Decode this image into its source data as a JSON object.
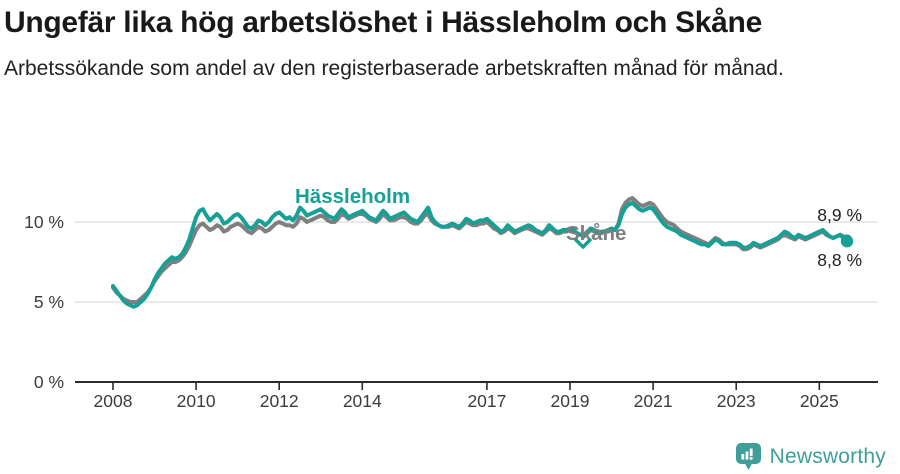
{
  "header": {
    "title": "Ungefär lika hög arbetslöshet i Hässleholm och Skåne",
    "subtitle": "Arbetssökande som andel av den registerbaserade arbetskraften månad för månad."
  },
  "chart_data": {
    "type": "line",
    "unit": "%",
    "x_start": "2008-01",
    "x_end": "2025-09",
    "x_ticks": [
      2008,
      2010,
      2012,
      2014,
      2017,
      2019,
      2021,
      2023,
      2025
    ],
    "y_ticks": [
      {
        "value": 0,
        "label": "0 %"
      },
      {
        "value": 5,
        "label": "5 %"
      },
      {
        "value": 10,
        "label": "10 %"
      }
    ],
    "ylim": [
      0,
      12.5
    ],
    "grid": "horizontal",
    "legend_position": "inline-annotations",
    "series": [
      {
        "name": "Skåne",
        "color": "#7f7f7f",
        "annotation_label": "Skåne",
        "end_label": "8,9 %",
        "end_value": 8.9,
        "values_by_year": {
          "2008": [
            5.9,
            5.6,
            5.4,
            5.2,
            5.1,
            5.0,
            5.0,
            5.0,
            5.2,
            5.4,
            5.6,
            5.9
          ],
          "2009": [
            6.3,
            6.6,
            6.9,
            7.1,
            7.3,
            7.5,
            7.5,
            7.6,
            7.8,
            8.1,
            8.5,
            9.0
          ],
          "2010": [
            9.5,
            9.8,
            9.9,
            9.7,
            9.5,
            9.6,
            9.8,
            9.7,
            9.4,
            9.5,
            9.7,
            9.8
          ],
          "2011": [
            9.9,
            9.8,
            9.6,
            9.4,
            9.3,
            9.5,
            9.7,
            9.6,
            9.4,
            9.5,
            9.7,
            9.9
          ],
          "2012": [
            10.0,
            9.9,
            9.8,
            9.8,
            9.7,
            9.9,
            10.3,
            10.2,
            10.0,
            10.1,
            10.2,
            10.3
          ],
          "2013": [
            10.4,
            10.3,
            10.1,
            10.0,
            10.0,
            10.2,
            10.5,
            10.4,
            10.2,
            10.3,
            10.4,
            10.5
          ],
          "2014": [
            10.5,
            10.4,
            10.2,
            10.1,
            10.0,
            10.2,
            10.5,
            10.3,
            10.1,
            10.1,
            10.2,
            10.3
          ],
          "2015": [
            10.3,
            10.2,
            10.0,
            9.9,
            9.9,
            10.1,
            10.4,
            10.5,
            10.1,
            9.9,
            9.8,
            9.7
          ],
          "2016": [
            9.7,
            9.7,
            9.8,
            9.7,
            9.6,
            9.8,
            10.0,
            9.9,
            9.8,
            9.8,
            9.9,
            9.9
          ],
          "2017": [
            10.0,
            9.8,
            9.6,
            9.5,
            9.3,
            9.4,
            9.6,
            9.5,
            9.3,
            9.4,
            9.5,
            9.6
          ],
          "2018": [
            9.6,
            9.5,
            9.4,
            9.3,
            9.2,
            9.4,
            9.6,
            9.5,
            9.3,
            9.3,
            9.4,
            9.4
          ],
          "2019": [
            9.5,
            9.4,
            9.3,
            9.2,
            9.1,
            9.3,
            9.5,
            9.4,
            9.3,
            9.3,
            9.4,
            9.4
          ],
          "2020": [
            9.5,
            9.5,
            9.9,
            10.8,
            11.2,
            11.4,
            11.5,
            11.3,
            11.1,
            11.0,
            11.1,
            11.2
          ],
          "2021": [
            11.1,
            10.8,
            10.5,
            10.2,
            10.0,
            9.9,
            9.8,
            9.6,
            9.4,
            9.3,
            9.2,
            9.1
          ],
          "2022": [
            9.0,
            8.9,
            8.8,
            8.7,
            8.6,
            8.8,
            9.0,
            8.9,
            8.7,
            8.6,
            8.6,
            8.6
          ],
          "2023": [
            8.6,
            8.5,
            8.3,
            8.3,
            8.4,
            8.6,
            8.5,
            8.4,
            8.5,
            8.6,
            8.7,
            8.8
          ],
          "2024": [
            8.9,
            9.1,
            9.2,
            9.1,
            9.0,
            8.9,
            9.1,
            9.0,
            8.9,
            9.0,
            9.1,
            9.2
          ],
          "2025": [
            9.3,
            9.4,
            9.2,
            9.1,
            9.0,
            9.1,
            9.2,
            9.1,
            8.9
          ]
        }
      },
      {
        "name": "Hässleholm",
        "color": "#16a096",
        "annotation_label": "Hässleholm",
        "end_label": "8,8 %",
        "end_value": 8.8,
        "values_by_year": {
          "2008": [
            6.0,
            5.7,
            5.4,
            5.1,
            4.9,
            4.8,
            4.7,
            4.8,
            5.0,
            5.2,
            5.5,
            5.9
          ],
          "2009": [
            6.4,
            6.8,
            7.1,
            7.4,
            7.6,
            7.8,
            7.7,
            7.8,
            8.0,
            8.4,
            8.9,
            9.6
          ],
          "2010": [
            10.3,
            10.7,
            10.8,
            10.4,
            10.1,
            10.3,
            10.5,
            10.3,
            9.9,
            10.0,
            10.2,
            10.4
          ],
          "2011": [
            10.5,
            10.3,
            10.0,
            9.7,
            9.6,
            9.8,
            10.1,
            10.0,
            9.8,
            10.0,
            10.3,
            10.5
          ],
          "2012": [
            10.6,
            10.4,
            10.2,
            10.3,
            10.1,
            10.4,
            10.9,
            10.7,
            10.4,
            10.5,
            10.6,
            10.7
          ],
          "2013": [
            10.8,
            10.6,
            10.4,
            10.3,
            10.2,
            10.5,
            10.8,
            10.6,
            10.3,
            10.4,
            10.5,
            10.6
          ],
          "2014": [
            10.7,
            10.5,
            10.3,
            10.2,
            10.1,
            10.4,
            10.7,
            10.5,
            10.2,
            10.3,
            10.4,
            10.5
          ],
          "2015": [
            10.6,
            10.4,
            10.2,
            10.1,
            10.0,
            10.3,
            10.6,
            10.9,
            10.3,
            10.0,
            9.8,
            9.7
          ],
          "2016": [
            9.7,
            9.8,
            9.9,
            9.8,
            9.7,
            9.9,
            10.2,
            10.1,
            9.9,
            10.0,
            10.1,
            10.1
          ],
          "2017": [
            10.2,
            10.0,
            9.8,
            9.6,
            9.4,
            9.5,
            9.8,
            9.6,
            9.4,
            9.5,
            9.6,
            9.7
          ],
          "2018": [
            9.8,
            9.7,
            9.5,
            9.4,
            9.3,
            9.5,
            9.8,
            9.6,
            9.4,
            9.4,
            9.5,
            9.5
          ],
          "2019": [
            9.6,
            9.5,
            9.3,
            9.2,
            9.2,
            9.4,
            9.6,
            9.5,
            9.3,
            9.4,
            9.4,
            9.5
          ],
          "2020": [
            9.6,
            9.5,
            9.8,
            10.5,
            10.9,
            11.1,
            11.2,
            11.0,
            10.8,
            10.7,
            10.8,
            10.9
          ],
          "2021": [
            10.8,
            10.5,
            10.2,
            9.9,
            9.7,
            9.6,
            9.5,
            9.4,
            9.2,
            9.1,
            9.0,
            8.9
          ],
          "2022": [
            8.8,
            8.7,
            8.6,
            8.6,
            8.5,
            8.7,
            8.9,
            8.8,
            8.6,
            8.6,
            8.7,
            8.7
          ],
          "2023": [
            8.7,
            8.6,
            8.4,
            8.4,
            8.5,
            8.7,
            8.6,
            8.5,
            8.6,
            8.7,
            8.8,
            8.9
          ],
          "2024": [
            9.0,
            9.2,
            9.4,
            9.3,
            9.1,
            9.0,
            9.2,
            9.1,
            9.0,
            9.1,
            9.2,
            9.3
          ],
          "2025": [
            9.4,
            9.5,
            9.3,
            9.1,
            9.0,
            9.1,
            9.2,
            9.0,
            8.8
          ]
        }
      }
    ]
  },
  "colors": {
    "teal": "#16a096",
    "gray": "#7f7f7f",
    "grid": "#dcdcdc",
    "axis": "#2b2b2b",
    "tick_text": "#3c3c3c",
    "logo_teal": "#3f9e98"
  },
  "footer": {
    "brand": "Newsworthy"
  }
}
